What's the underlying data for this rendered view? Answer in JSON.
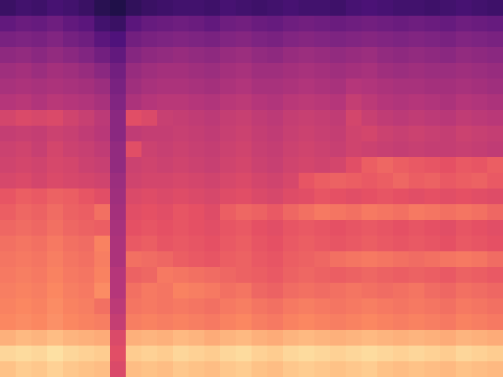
{
  "chart_data": {
    "type": "heatmap",
    "color": "magma",
    "tick_labels": false,
    "grid": false,
    "zlim": [
      0,
      100
    ],
    "cells": [
      [
        20,
        22,
        21,
        23,
        22,
        20,
        16,
        14,
        18,
        20,
        21,
        22,
        22,
        21,
        23,
        22,
        21,
        22,
        23,
        22,
        22,
        21,
        23,
        24,
        23,
        22,
        22,
        21,
        22,
        23,
        22,
        21
      ],
      [
        30,
        32,
        31,
        33,
        30,
        28,
        22,
        20,
        28,
        31,
        32,
        33,
        32,
        30,
        33,
        34,
        32,
        31,
        33,
        34,
        33,
        32,
        33,
        34,
        33,
        32,
        33,
        32,
        31,
        33,
        32,
        31
      ],
      [
        36,
        37,
        36,
        38,
        35,
        33,
        28,
        25,
        34,
        36,
        37,
        38,
        37,
        36,
        38,
        39,
        37,
        36,
        38,
        39,
        38,
        37,
        38,
        39,
        38,
        37,
        38,
        37,
        36,
        38,
        37,
        36
      ],
      [
        41,
        42,
        40,
        42,
        40,
        38,
        34,
        30,
        39,
        41,
        42,
        43,
        42,
        41,
        43,
        44,
        42,
        41,
        43,
        44,
        43,
        42,
        43,
        44,
        42,
        41,
        42,
        41,
        40,
        42,
        41,
        40
      ],
      [
        45,
        46,
        44,
        46,
        45,
        43,
        40,
        34,
        43,
        45,
        46,
        46,
        45,
        44,
        46,
        47,
        45,
        45,
        46,
        47,
        46,
        45,
        46,
        47,
        45,
        44,
        45,
        44,
        44,
        45,
        44,
        43
      ],
      [
        47,
        48,
        47,
        48,
        47,
        46,
        44,
        36,
        45,
        47,
        48,
        48,
        47,
        46,
        48,
        49,
        47,
        47,
        48,
        49,
        48,
        47,
        50,
        49,
        48,
        47,
        47,
        46,
        46,
        47,
        46,
        45
      ],
      [
        50,
        51,
        49,
        51,
        50,
        49,
        47,
        38,
        48,
        50,
        51,
        51,
        50,
        49,
        51,
        52,
        50,
        49,
        51,
        52,
        51,
        50,
        54,
        52,
        50,
        49,
        50,
        49,
        48,
        50,
        49,
        48
      ],
      [
        58,
        60,
        59,
        60,
        57,
        55,
        52,
        40,
        62,
        60,
        55,
        54,
        53,
        52,
        54,
        55,
        53,
        52,
        54,
        55,
        54,
        53,
        58,
        55,
        53,
        52,
        53,
        52,
        51,
        53,
        52,
        51
      ],
      [
        54,
        55,
        54,
        56,
        55,
        53,
        51,
        40,
        53,
        54,
        54,
        55,
        54,
        53,
        55,
        56,
        54,
        53,
        55,
        56,
        55,
        54,
        57,
        58,
        56,
        55,
        56,
        55,
        54,
        56,
        55,
        54
      ],
      [
        56,
        57,
        55,
        58,
        56,
        55,
        53,
        42,
        62,
        56,
        55,
        56,
        55,
        54,
        56,
        57,
        55,
        54,
        56,
        57,
        56,
        55,
        57,
        56,
        55,
        54,
        55,
        54,
        54,
        55,
        54,
        53
      ],
      [
        57,
        58,
        57,
        59,
        58,
        56,
        55,
        42,
        56,
        57,
        56,
        57,
        56,
        55,
        57,
        58,
        56,
        55,
        57,
        58,
        57,
        58,
        62,
        66,
        68,
        66,
        65,
        64,
        63,
        65,
        64,
        66
      ],
      [
        59,
        60,
        58,
        60,
        59,
        58,
        57,
        44,
        57,
        58,
        58,
        59,
        58,
        57,
        59,
        60,
        58,
        57,
        59,
        64,
        66,
        67,
        66,
        65,
        66,
        68,
        66,
        67,
        65,
        66,
        67,
        65
      ],
      [
        64,
        66,
        65,
        67,
        66,
        64,
        62,
        45,
        60,
        61,
        60,
        61,
        60,
        59,
        61,
        62,
        60,
        59,
        61,
        62,
        64,
        63,
        62,
        63,
        64,
        63,
        62,
        63,
        62,
        63,
        62,
        61
      ],
      [
        66,
        68,
        67,
        69,
        67,
        66,
        70,
        46,
        62,
        63,
        62,
        64,
        63,
        61,
        66,
        68,
        67,
        65,
        68,
        70,
        72,
        71,
        70,
        72,
        71,
        70,
        72,
        71,
        70,
        71,
        70,
        68
      ],
      [
        68,
        69,
        68,
        70,
        68,
        67,
        66,
        47,
        63,
        64,
        63,
        64,
        63,
        62,
        64,
        65,
        63,
        62,
        64,
        65,
        64,
        63,
        64,
        65,
        64,
        63,
        64,
        63,
        62,
        64,
        63,
        62
      ],
      [
        70,
        71,
        70,
        72,
        70,
        69,
        74,
        48,
        65,
        66,
        64,
        65,
        64,
        63,
        65,
        66,
        64,
        63,
        65,
        66,
        65,
        64,
        65,
        66,
        65,
        64,
        65,
        64,
        63,
        65,
        64,
        63
      ],
      [
        71,
        72,
        71,
        73,
        71,
        70,
        73,
        48,
        70,
        69,
        68,
        66,
        65,
        64,
        66,
        67,
        65,
        64,
        66,
        67,
        68,
        70,
        71,
        72,
        71,
        70,
        69,
        70,
        71,
        72,
        71,
        69
      ],
      [
        72,
        73,
        72,
        74,
        72,
        71,
        74,
        50,
        67,
        68,
        72,
        71,
        70,
        69,
        68,
        67,
        66,
        65,
        67,
        68,
        67,
        66,
        67,
        68,
        67,
        66,
        67,
        66,
        65,
        67,
        66,
        65
      ],
      [
        73,
        74,
        73,
        75,
        73,
        72,
        76,
        50,
        70,
        72,
        71,
        74,
        73,
        72,
        70,
        71,
        68,
        67,
        69,
        70,
        69,
        70,
        71,
        70,
        69,
        70,
        71,
        69,
        68,
        70,
        69,
        68
      ],
      [
        74,
        75,
        74,
        76,
        74,
        73,
        70,
        52,
        71,
        72,
        71,
        72,
        71,
        70,
        72,
        73,
        71,
        70,
        72,
        73,
        72,
        71,
        72,
        73,
        72,
        71,
        72,
        71,
        70,
        72,
        71,
        70
      ],
      [
        75,
        76,
        75,
        77,
        75,
        74,
        73,
        54,
        73,
        74,
        73,
        74,
        73,
        72,
        74,
        75,
        73,
        72,
        74,
        75,
        74,
        73,
        74,
        75,
        74,
        73,
        74,
        73,
        72,
        74,
        73,
        72
      ],
      [
        84,
        86,
        85,
        87,
        85,
        84,
        83,
        60,
        84,
        85,
        84,
        86,
        85,
        83,
        85,
        86,
        84,
        83,
        85,
        86,
        85,
        84,
        85,
        86,
        85,
        84,
        85,
        84,
        83,
        85,
        84,
        83
      ],
      [
        92,
        93,
        92,
        94,
        92,
        91,
        90,
        62,
        90,
        91,
        90,
        92,
        91,
        90,
        92,
        93,
        91,
        90,
        92,
        93,
        92,
        91,
        92,
        93,
        92,
        91,
        92,
        91,
        90,
        92,
        91,
        90
      ],
      [
        88,
        90,
        89,
        91,
        89,
        88,
        87,
        60,
        87,
        88,
        87,
        89,
        88,
        87,
        89,
        90,
        88,
        87,
        89,
        90,
        89,
        88,
        89,
        90,
        88,
        87,
        88,
        87,
        86,
        88,
        87,
        86
      ]
    ]
  }
}
